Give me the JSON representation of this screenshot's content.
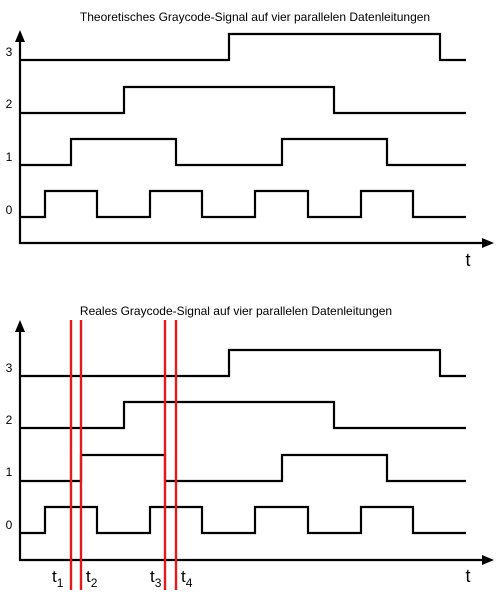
{
  "top_panel": {
    "title": "Theoretisches Graycode-Signal auf vier parallelen Datenleitungen",
    "time_label": "t",
    "lines": [
      {
        "label": "3"
      },
      {
        "label": "2"
      },
      {
        "label": "1"
      },
      {
        "label": "0"
      }
    ]
  },
  "bottom_panel": {
    "title": "Reales Graycode-Signal auf vier parallelen Datenleitungen",
    "time_label": "t",
    "lines": [
      {
        "label": "3"
      },
      {
        "label": "2"
      },
      {
        "label": "1"
      },
      {
        "label": "0"
      }
    ],
    "markers": [
      {
        "main": "t",
        "sub": "1"
      },
      {
        "main": "t",
        "sub": "2"
      },
      {
        "main": "t",
        "sub": "3"
      },
      {
        "main": "t",
        "sub": "4"
      }
    ]
  },
  "colors": {
    "signal": "#000000",
    "marker": "#e41a1c"
  }
}
